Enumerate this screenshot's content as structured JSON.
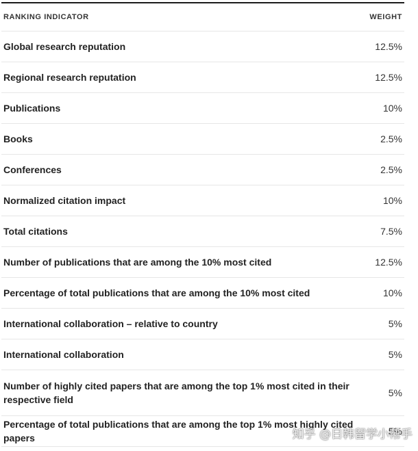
{
  "table": {
    "headers": {
      "indicator": "RANKING INDICATOR",
      "weight": "WEIGHT"
    },
    "rows": [
      {
        "indicator": "Global research reputation",
        "weight": "12.5%"
      },
      {
        "indicator": "Regional research reputation",
        "weight": "12.5%"
      },
      {
        "indicator": "Publications",
        "weight": "10%"
      },
      {
        "indicator": "Books",
        "weight": "2.5%"
      },
      {
        "indicator": "Conferences",
        "weight": "2.5%"
      },
      {
        "indicator": "Normalized citation impact",
        "weight": "10%"
      },
      {
        "indicator": "Total citations",
        "weight": "7.5%"
      },
      {
        "indicator": "Number of publications that are among the 10% most cited",
        "weight": "12.5%"
      },
      {
        "indicator": "Percentage of total publications that are among the 10% most cited",
        "weight": "10%"
      },
      {
        "indicator": "International collaboration – relative to country",
        "weight": "5%"
      },
      {
        "indicator": "International collaboration",
        "weight": "5%"
      },
      {
        "indicator": "Number of highly cited papers that are among the top 1% most cited in their respective field",
        "weight": "5%"
      },
      {
        "indicator": "Percentage of total publications that are among the top 1% most highly cited papers",
        "weight": "5%"
      }
    ]
  },
  "watermark": {
    "text": "知乎 @日韩留学小帮手"
  }
}
